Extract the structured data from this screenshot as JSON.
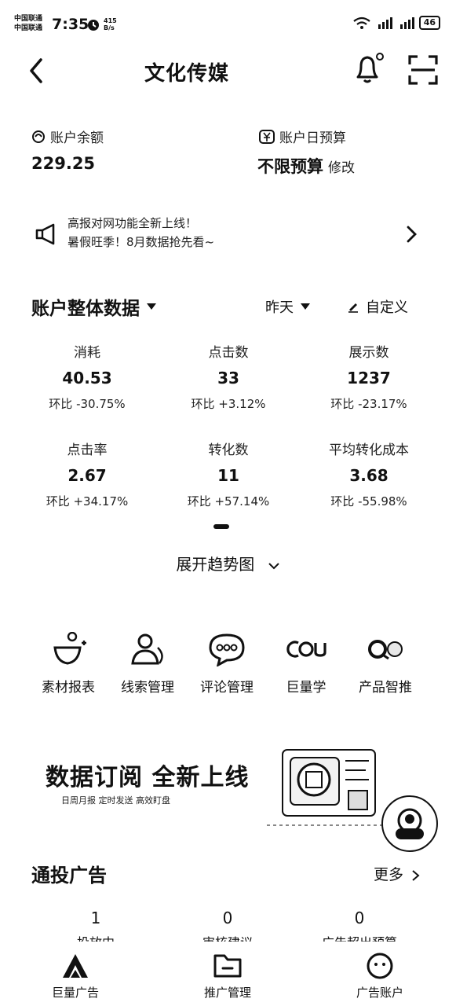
{
  "status_bar": {
    "carrier_1": "中国联通",
    "carrier_2": "中国联通",
    "time": "7:35",
    "speed_value": "415",
    "speed_unit": "B/s",
    "battery": "46"
  },
  "header": {
    "title": "文化传媒"
  },
  "balance": {
    "label": "账户余额",
    "value": "229.25"
  },
  "budget": {
    "label": "账户日预算",
    "value": "不限预算",
    "edit_label": "修改"
  },
  "notice": {
    "line1": "高报对网功能全新上线！",
    "line2": "暑假旺季！8月数据抢先看~"
  },
  "overview": {
    "title": "账户整体数据",
    "date_filter": "昨天",
    "customize_label": "自定义",
    "metrics": [
      {
        "name": "消耗",
        "value": "40.53",
        "compare": "环比 -30.75%"
      },
      {
        "name": "点击数",
        "value": "33",
        "compare": "环比 +3.12%"
      },
      {
        "name": "展示数",
        "value": "1237",
        "compare": "环比 -23.17%"
      },
      {
        "name": "点击率",
        "value": "2.67",
        "compare": "环比 +34.17%"
      },
      {
        "name": "转化数",
        "value": "11",
        "compare": "环比 +57.14%"
      },
      {
        "name": "平均转化成本",
        "value": "3.68",
        "compare": "环比 -55.98%"
      }
    ],
    "expand_label": "展开趋势图"
  },
  "tools": [
    {
      "label": "素材报表",
      "icon": "material-report-icon"
    },
    {
      "label": "线索管理",
      "icon": "lead-management-icon"
    },
    {
      "label": "评论管理",
      "icon": "comment-management-icon"
    },
    {
      "label": "巨量学",
      "icon": "learning-icon"
    },
    {
      "label": "产品智推",
      "icon": "smart-push-icon"
    }
  ],
  "banner": {
    "title": "数据订阅 全新上线",
    "subtitle": "日周月报  定时发送  高效盯盘"
  },
  "ads": {
    "title": "通投广告",
    "more_label": "更多",
    "stats": [
      {
        "value": "1",
        "label": "投放中"
      },
      {
        "value": "0",
        "label": "审核建议"
      },
      {
        "value": "0",
        "label": "广告超出预算"
      }
    ]
  },
  "bottom_nav": [
    {
      "label": "巨量广告",
      "icon": "brand-logo-icon"
    },
    {
      "label": "推广管理",
      "icon": "folder-icon"
    },
    {
      "label": "广告账户",
      "icon": "account-face-icon"
    }
  ]
}
